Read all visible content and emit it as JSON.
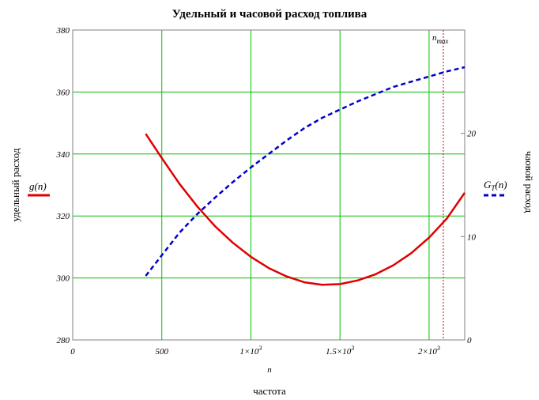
{
  "chart_data": {
    "type": "line",
    "title": "Удельный и часовой расход топлива",
    "xlabel": "частота",
    "xsymbol": "n",
    "ylabel_left": "удельный расход",
    "ylabel_right": "чаовой расход",
    "xlim": [
      0,
      2200
    ],
    "ylim_left": [
      280,
      380
    ],
    "ylim_right": [
      0,
      30
    ],
    "grid": true,
    "x_ticks": [
      {
        "value": 0,
        "label": "0",
        "base": "",
        "exp": ""
      },
      {
        "value": 500,
        "label": "500",
        "base": "",
        "exp": ""
      },
      {
        "value": 1000,
        "label": "",
        "base": "1×10",
        "exp": "3"
      },
      {
        "value": 1500,
        "label": "",
        "base": "1.5×10",
        "exp": "3"
      },
      {
        "value": 2000,
        "label": "",
        "base": "2×10",
        "exp": "3"
      }
    ],
    "y_left_ticks": [
      280,
      300,
      320,
      340,
      360,
      380
    ],
    "y_right_ticks": [
      0,
      10,
      20
    ],
    "marker": {
      "x": 2080,
      "label": "n",
      "sub": "max",
      "color": "#cc0000"
    },
    "series": [
      {
        "name": "g(n)",
        "name_base": "g(n)",
        "name_sub": "",
        "axis": "left",
        "color": "#e00000",
        "style": "solid",
        "x": [
          410,
          500,
          600,
          700,
          800,
          900,
          1000,
          1100,
          1200,
          1300,
          1400,
          1500,
          1600,
          1700,
          1800,
          1900,
          2000,
          2100,
          2200
        ],
        "y": [
          346.5,
          338.7,
          330.3,
          323.0,
          316.6,
          311.3,
          306.8,
          303.2,
          300.5,
          298.6,
          297.8,
          298.0,
          299.2,
          301.2,
          304.1,
          308.0,
          313.0,
          319.2,
          327.5
        ]
      },
      {
        "name": "GT(n)",
        "name_base": "G",
        "name_sub": "T",
        "name_tail": "(n)",
        "axis": "right",
        "color": "#0000cc",
        "style": "dash",
        "x": [
          410,
          500,
          600,
          700,
          800,
          900,
          1000,
          1100,
          1200,
          1300,
          1400,
          1500,
          1600,
          1700,
          1800,
          1900,
          2000,
          2100,
          2200
        ],
        "y": [
          6.2,
          8.2,
          10.4,
          12.2,
          13.8,
          15.3,
          16.7,
          18.0,
          19.3,
          20.5,
          21.5,
          22.3,
          23.1,
          23.8,
          24.5,
          25.0,
          25.5,
          26.0,
          26.4
        ]
      }
    ]
  }
}
